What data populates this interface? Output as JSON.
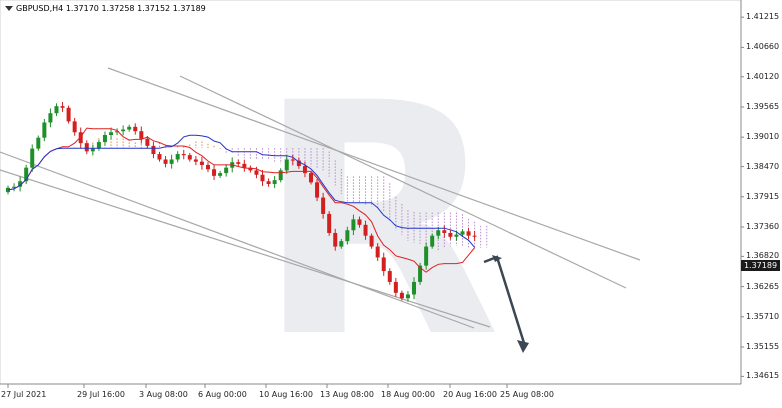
{
  "header": {
    "symbol": "GBPUSD,H4",
    "ohlc": "1.37170 1.37258 1.37152 1.37189"
  },
  "watermark": {
    "letter": "R"
  },
  "price_marker": {
    "value": "1.37189",
    "price": 1.37189
  },
  "colors": {
    "candle_up": "#1f8f2a",
    "candle_down": "#d21f1f",
    "tenkan": "#e02020",
    "kijun": "#2233cc",
    "cloud_bull": "#e8892f",
    "cloud_bear": "#b98ad0",
    "trend_lines": "#a8a8a8",
    "arrow": "#3b4753"
  },
  "chart_data": {
    "type": "candlestick",
    "y_axis": {
      "ticks": [
        "1.41215",
        "1.40660",
        "1.40120",
        "1.39565",
        "1.39010",
        "1.38470",
        "1.37915",
        "1.37360",
        "1.36820",
        "1.36265",
        "1.35710",
        "1.35155",
        "1.34615"
      ],
      "ylim": [
        1.3453,
        1.4131
      ]
    },
    "x_axis": {
      "ticks": [
        "27 Jul 2021",
        "29 Jul 16:00",
        "3 Aug 08:00",
        "6 Aug 00:00",
        "10 Aug 16:00",
        "13 Aug 08:00",
        "18 Aug 00:00",
        "20 Aug 16:00",
        "25 Aug 08:00"
      ]
    },
    "close_series": [
      1.3808,
      1.381,
      1.382,
      1.3845,
      1.388,
      1.39,
      1.3928,
      1.3945,
      1.3958,
      1.3955,
      1.393,
      1.391,
      1.389,
      1.3875,
      1.388,
      1.3892,
      1.3905,
      1.391,
      1.3912,
      1.3915,
      1.392,
      1.3912,
      1.3898,
      1.3885,
      1.387,
      1.386,
      1.3852,
      1.386,
      1.387,
      1.3868,
      1.386,
      1.3856,
      1.385,
      1.3842,
      1.383,
      1.3835,
      1.3845,
      1.3855,
      1.3852,
      1.3845,
      1.384,
      1.3832,
      1.382,
      1.3815,
      1.3822,
      1.384,
      1.386,
      1.3858,
      1.3848,
      1.3835,
      1.3818,
      1.379,
      1.376,
      1.3725,
      1.37,
      1.371,
      1.373,
      1.375,
      1.374,
      1.372,
      1.37,
      1.368,
      1.3655,
      1.3635,
      1.3615,
      1.3605,
      1.3612,
      1.3635,
      1.3665,
      1.37,
      1.372,
      1.373,
      1.3725,
      1.3718,
      1.3722,
      1.3728,
      1.372,
      1.3719
    ],
    "tenkan_close_window": 9,
    "kijun_close_window": 26,
    "trend_lines": [
      {
        "from": [
          "27 Jul 2021",
          1.3915
        ],
        "to": [
          "20 Aug 16:00",
          1.3578
        ]
      },
      {
        "from": [
          "27 Jul 2021",
          1.387
        ],
        "to": [
          "25 Aug 08:00",
          1.357
        ]
      },
      {
        "from": [
          "29 Jul 16:00",
          1.4015
        ],
        "to": [
          "Aug 30 approx",
          1.368
        ]
      },
      {
        "from": [
          "3 Aug 08:00",
          1.4
        ],
        "to": [
          "Aug 30 approx",
          1.363
        ]
      }
    ],
    "forecast_arrow": {
      "from": [
        "25 Aug 08:00",
        1.374
      ],
      "via": [
        "25 Aug 08:00",
        1.3735
      ],
      "to": [
        "26 Aug",
        1.352
      ]
    }
  }
}
